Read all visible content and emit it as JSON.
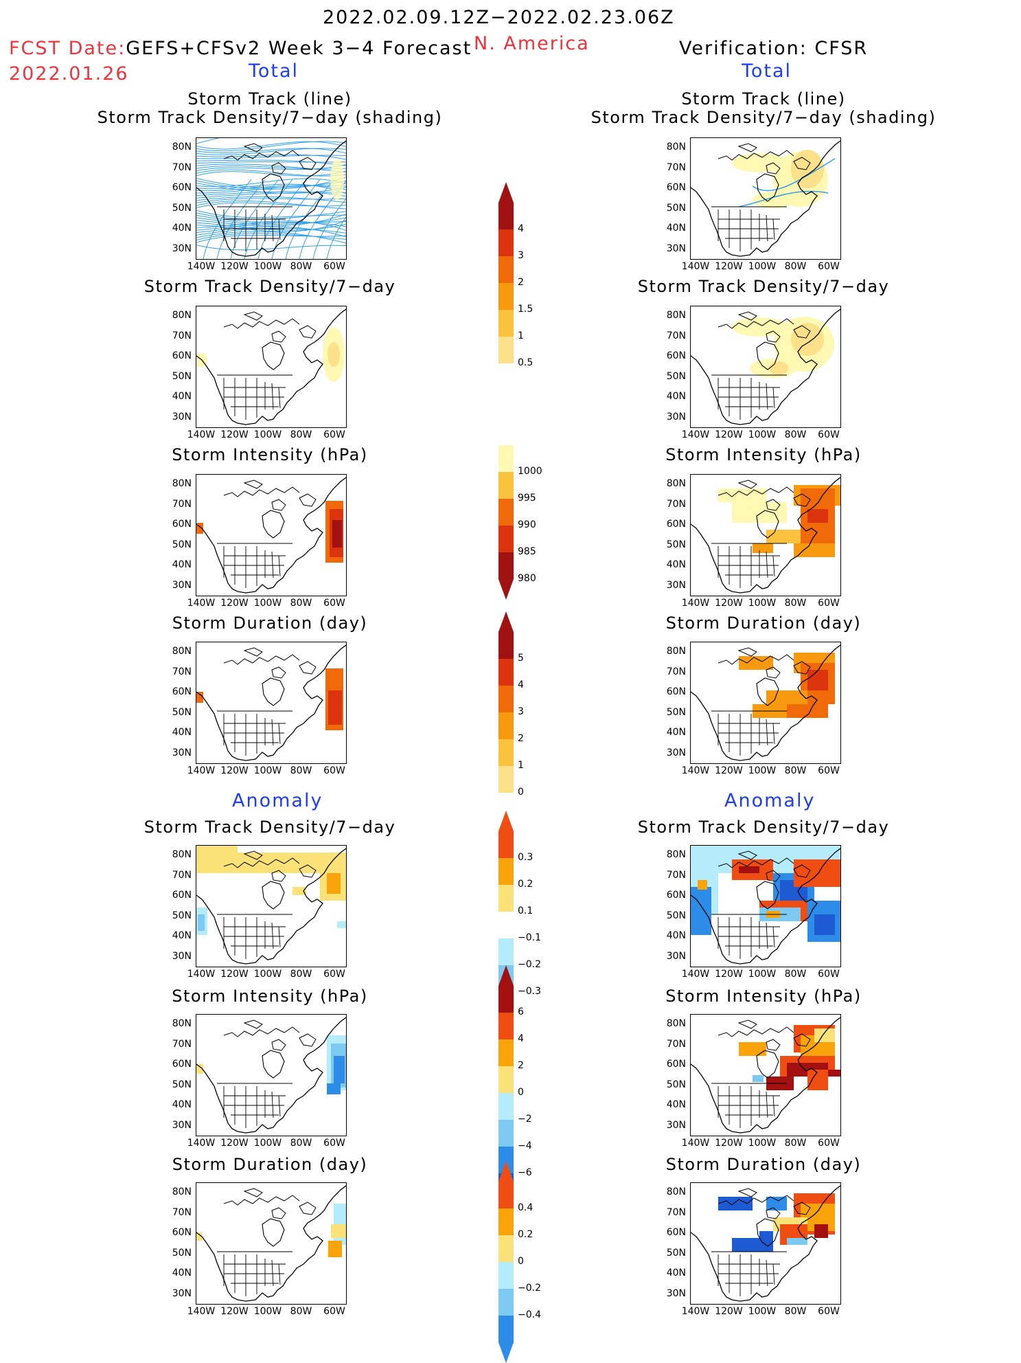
{
  "header": {
    "date_range": "2022.02.09.12Z−2022.02.23.06Z",
    "fcst_label": "FCST Date:",
    "fcst_model": "GEFS+CFSv2 Week 3−4 Forecast",
    "fcst_date": "2022.01.26",
    "region": "N. America",
    "verification": "Verification: CFSR",
    "left_section_total": "Total",
    "right_section_total": "Total",
    "left_section_anomaly": "Anomaly",
    "right_section_anomaly": "Anomaly"
  },
  "panels": {
    "track_line_1": "Storm Track (line)",
    "track_line_2": "Storm Track Density/7−day (shading)",
    "density": "Storm Track Density/7−day",
    "intensity": "Storm Intensity (hPa)",
    "duration": "Storm Duration (day)"
  },
  "axes": {
    "lat_ticks": [
      "80N",
      "70N",
      "60N",
      "50N",
      "40N",
      "30N"
    ],
    "lon_ticks": [
      "140W",
      "120W",
      "100W",
      "80W",
      "60W"
    ]
  },
  "colorbars": {
    "density_total": [
      "4",
      "3",
      "2",
      "1.5",
      "1",
      "0.5"
    ],
    "intensity_total": [
      "1000",
      "995",
      "990",
      "985",
      "980"
    ],
    "duration_total": [
      "5",
      "4",
      "3",
      "2",
      "1",
      "0"
    ],
    "density_anom": [
      "0.3",
      "0.2",
      "0.1",
      "−0.1",
      "−0.2",
      "−0.3"
    ],
    "intensity_anom": [
      "6",
      "4",
      "2",
      "0",
      "−2",
      "−4",
      "−6"
    ],
    "duration_anom": [
      "0.4",
      "0.2",
      "0",
      "−0.2",
      "−0.4"
    ]
  },
  "colors": {
    "track_line": "#2fa0ea",
    "seq": [
      "#fff9b4",
      "#fde08a",
      "#fbc23e",
      "#f89a10",
      "#f06a0a",
      "#dd3410",
      "#a01212"
    ],
    "div_pos": [
      "#fbe278",
      "#f8a30a",
      "#ef4d12",
      "#a31010"
    ],
    "div_neg": [
      "#b4ecfb",
      "#7ccaf2",
      "#2d8ce8",
      "#1e5ad2"
    ]
  }
}
